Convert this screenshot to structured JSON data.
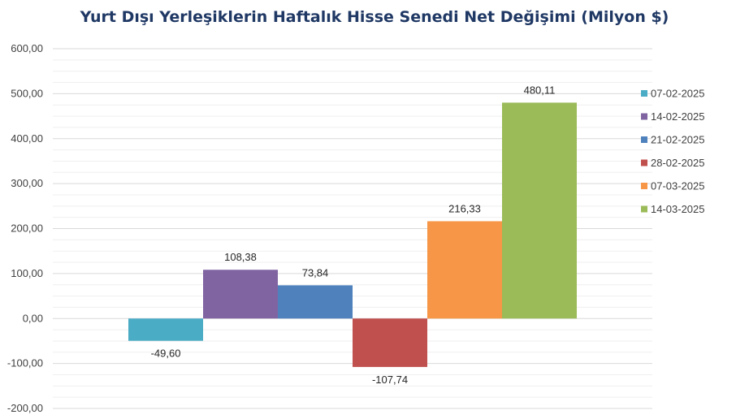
{
  "chart_data": {
    "type": "bar",
    "title": "Yurt Dışı Yerleşiklerin Haftalık Hisse Senedi Net Değişimi (Milyon $)",
    "categories": [
      "07-02-2025",
      "14-02-2025",
      "21-02-2025",
      "28-02-2025",
      "07-03-2025",
      "14-03-2025"
    ],
    "values": [
      -49.6,
      108.38,
      73.84,
      -107.74,
      216.33,
      480.11
    ],
    "value_labels": [
      "-49,60",
      "108,38",
      "73,84",
      "-107,74",
      "216,33",
      "480,11"
    ],
    "colors": [
      "#4bacc6",
      "#8064a2",
      "#4f81bd",
      "#c0504d",
      "#f79646",
      "#9bbb59"
    ],
    "ylim": [
      -200,
      600
    ],
    "yticks": [
      600,
      500,
      400,
      300,
      200,
      100,
      0,
      -100,
      -200
    ],
    "ytick_labels": [
      "600,00",
      "500,00",
      "400,00",
      "300,00",
      "200,00",
      "100,00",
      "0,00",
      "-100,00",
      "-200,00"
    ],
    "grid": true,
    "legend_position": "right"
  }
}
